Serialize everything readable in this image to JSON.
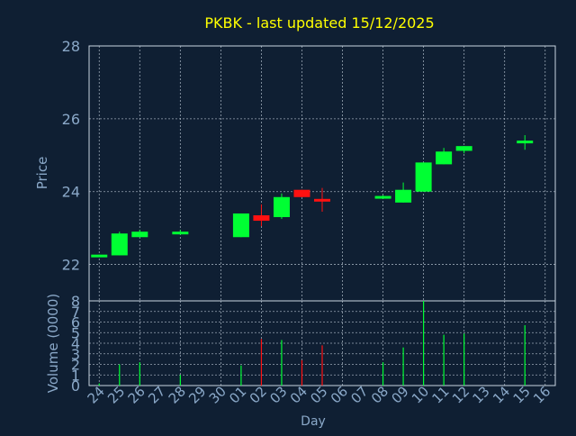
{
  "colors": {
    "background": "#0f1f33",
    "title": "#ffff00",
    "axis_text": "#8aa8c8",
    "axis_line": "#c8d4e0",
    "grid": "#c8d4e0",
    "up": "#00ff33",
    "down": "#ff1111"
  },
  "chart_data": [
    {
      "type": "candlestick",
      "title": "PKBK - last updated 15/12/2025",
      "ylabel": "Price",
      "ylim": [
        21,
        28
      ],
      "yticks": [
        22,
        24,
        26,
        28
      ],
      "grid": true,
      "x_ticks": [
        "24",
        "25",
        "26",
        "27",
        "28",
        "29",
        "30",
        "01",
        "02",
        "03",
        "04",
        "05",
        "06",
        "07",
        "08",
        "09",
        "10",
        "11",
        "12",
        "13",
        "14",
        "15",
        "16"
      ],
      "candles": [
        {
          "x": "24",
          "open": 22.2,
          "close": 22.27,
          "high": 22.27,
          "low": 22.2
        },
        {
          "x": "25",
          "open": 22.25,
          "close": 22.85,
          "high": 22.9,
          "low": 22.25
        },
        {
          "x": "26",
          "open": 22.75,
          "close": 22.9,
          "high": 22.95,
          "low": 22.75
        },
        {
          "x": "28",
          "open": 22.85,
          "close": 22.9,
          "high": 22.95,
          "low": 22.82
        },
        {
          "x": "01",
          "open": 22.75,
          "close": 23.4,
          "high": 23.4,
          "low": 22.75
        },
        {
          "x": "02",
          "open": 23.35,
          "close": 23.2,
          "high": 23.65,
          "low": 23.05
        },
        {
          "x": "03",
          "open": 23.3,
          "close": 23.85,
          "high": 23.95,
          "low": 23.25
        },
        {
          "x": "04",
          "open": 24.05,
          "close": 23.85,
          "high": 24.05,
          "low": 23.85
        },
        {
          "x": "05",
          "open": 23.8,
          "close": 23.75,
          "high": 24.1,
          "low": 23.45
        },
        {
          "x": "08",
          "open": 23.82,
          "close": 23.88,
          "high": 23.9,
          "low": 23.8
        },
        {
          "x": "09",
          "open": 23.7,
          "close": 24.05,
          "high": 24.25,
          "low": 23.7
        },
        {
          "x": "10",
          "open": 24.0,
          "close": 24.8,
          "high": 24.8,
          "low": 24.0
        },
        {
          "x": "11",
          "open": 24.75,
          "close": 25.1,
          "high": 25.2,
          "low": 24.75
        },
        {
          "x": "12",
          "open": 25.12,
          "close": 25.25,
          "high": 25.25,
          "low": 25.05
        },
        {
          "x": "15",
          "open": 25.33,
          "close": 25.4,
          "high": 25.55,
          "low": 25.15
        }
      ]
    },
    {
      "type": "bar",
      "ylabel": "Volume (0000)",
      "xlabel": "Day",
      "ylim": [
        0,
        8
      ],
      "yticks": [
        0,
        1,
        2,
        3,
        4,
        5,
        6,
        7,
        8
      ],
      "grid": true,
      "x_ticks": [
        "24",
        "25",
        "26",
        "27",
        "28",
        "29",
        "30",
        "01",
        "02",
        "03",
        "04",
        "05",
        "06",
        "07",
        "08",
        "09",
        "10",
        "11",
        "12",
        "13",
        "14",
        "15",
        "16"
      ],
      "bars": [
        {
          "x": "24",
          "value": 0.2,
          "direction": "up"
        },
        {
          "x": "25",
          "value": 2.0,
          "direction": "up"
        },
        {
          "x": "26",
          "value": 2.2,
          "direction": "up"
        },
        {
          "x": "28",
          "value": 1.0,
          "direction": "up"
        },
        {
          "x": "01",
          "value": 1.9,
          "direction": "up"
        },
        {
          "x": "02",
          "value": 4.4,
          "direction": "down"
        },
        {
          "x": "03",
          "value": 4.3,
          "direction": "up"
        },
        {
          "x": "04",
          "value": 2.4,
          "direction": "down"
        },
        {
          "x": "05",
          "value": 3.8,
          "direction": "down"
        },
        {
          "x": "08",
          "value": 2.2,
          "direction": "up"
        },
        {
          "x": "09",
          "value": 3.6,
          "direction": "up"
        },
        {
          "x": "10",
          "value": 8.0,
          "direction": "up"
        },
        {
          "x": "11",
          "value": 4.8,
          "direction": "up"
        },
        {
          "x": "12",
          "value": 4.9,
          "direction": "up"
        },
        {
          "x": "15",
          "value": 5.7,
          "direction": "up"
        }
      ]
    }
  ]
}
